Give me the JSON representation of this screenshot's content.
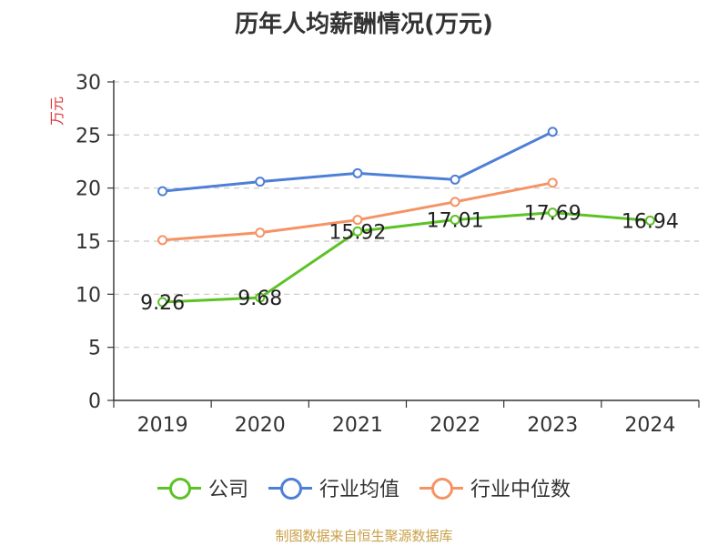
{
  "chart_data": {
    "type": "line",
    "title": "历年人均薪酬情况(万元)",
    "ylabel": "万元",
    "categories": [
      "2019",
      "2020",
      "2021",
      "2022",
      "2023",
      "2024"
    ],
    "ylim": [
      0,
      30
    ],
    "yticks": [
      0,
      5,
      10,
      15,
      20,
      25,
      30
    ],
    "grid": true,
    "legend_position": "bottom",
    "series": [
      {
        "name": "公司",
        "color": "#5cc226",
        "values": [
          9.26,
          9.68,
          15.92,
          17.01,
          17.69,
          16.94
        ],
        "labels": [
          "9.26",
          "9.68",
          "15.92",
          "17.01",
          "17.69",
          "16.94"
        ]
      },
      {
        "name": "行业均值",
        "color": "#4e7fd6",
        "values": [
          19.7,
          20.6,
          21.4,
          20.8,
          25.3,
          null
        ]
      },
      {
        "name": "行业中位数",
        "color": "#f59365",
        "values": [
          15.1,
          15.8,
          17.0,
          18.7,
          20.5,
          null
        ]
      }
    ]
  },
  "source": "制图数据来自恒生聚源数据库"
}
